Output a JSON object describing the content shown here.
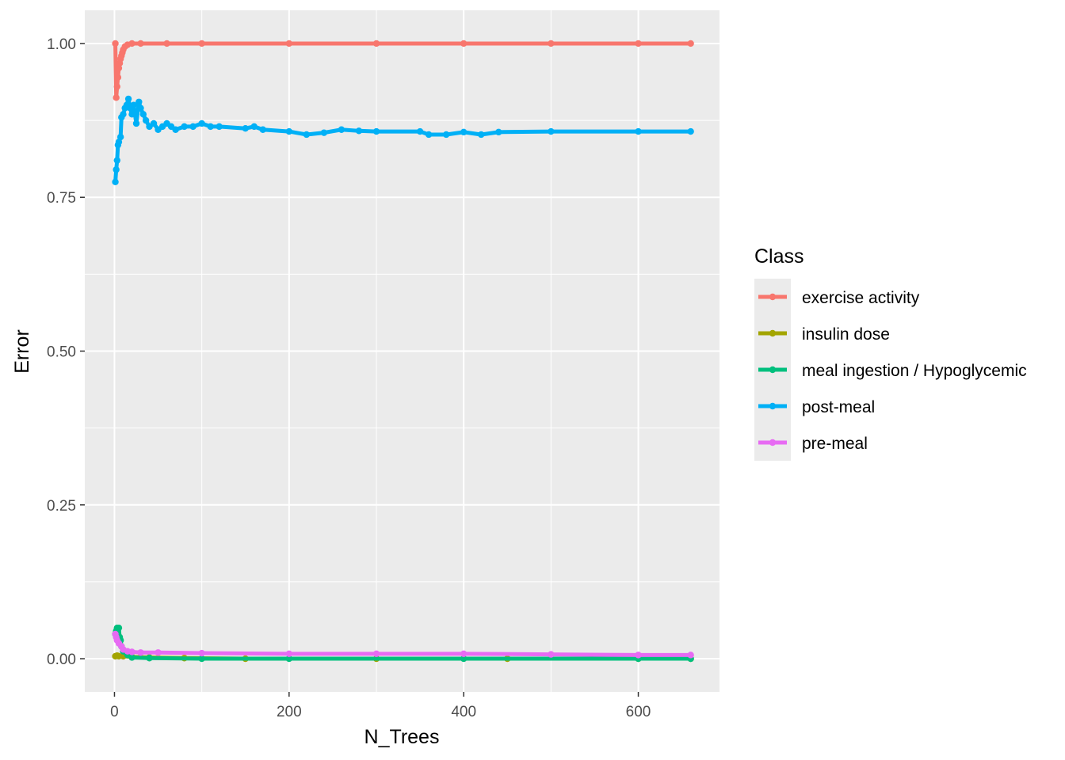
{
  "chart_data": {
    "type": "line",
    "xlabel": "N_Trees",
    "ylabel": "Error",
    "xlim": [
      -34,
      693
    ],
    "ylim": [
      -0.054,
      1.054
    ],
    "x_ticks": [
      0,
      200,
      400,
      600
    ],
    "x_tick_labels": [
      "0",
      "200",
      "400",
      "600"
    ],
    "y_ticks": [
      0.0,
      0.25,
      0.5,
      0.75,
      1.0
    ],
    "y_tick_labels": [
      "0.00",
      "0.25",
      "0.50",
      "0.75",
      "1.00"
    ],
    "panel_background": "#ebebeb",
    "grid": true,
    "legend_title": "Class",
    "legend_position": "right",
    "series": [
      {
        "name": "exercise activity",
        "color": "#F8766D",
        "points": [
          [
            1,
            1.0
          ],
          [
            2,
            0.912
          ],
          [
            3,
            0.93
          ],
          [
            4,
            0.945
          ],
          [
            5,
            0.96
          ],
          [
            6,
            0.968
          ],
          [
            7,
            0.975
          ],
          [
            8,
            0.98
          ],
          [
            9,
            0.985
          ],
          [
            10,
            0.99
          ],
          [
            12,
            0.995
          ],
          [
            15,
            0.998
          ],
          [
            20,
            1.0
          ],
          [
            30,
            1.0
          ],
          [
            60,
            1.0
          ],
          [
            100,
            1.0
          ],
          [
            200,
            1.0
          ],
          [
            300,
            1.0
          ],
          [
            400,
            1.0
          ],
          [
            500,
            1.0
          ],
          [
            600,
            1.0
          ],
          [
            660,
            1.0
          ]
        ]
      },
      {
        "name": "insulin dose",
        "color": "#A3A500",
        "points": [
          [
            1,
            0.004
          ],
          [
            3,
            0.005
          ],
          [
            5,
            0.004
          ],
          [
            10,
            0.004
          ],
          [
            20,
            0.003
          ],
          [
            40,
            0.002
          ],
          [
            80,
            0.001
          ],
          [
            150,
            0.0
          ],
          [
            300,
            0.0
          ],
          [
            450,
            0.0
          ],
          [
            600,
            0.0
          ],
          [
            660,
            0.0
          ]
        ]
      },
      {
        "name": "meal ingestion / Hypoglycemic",
        "color": "#00BF7D",
        "points": [
          [
            1,
            0.04
          ],
          [
            2,
            0.045
          ],
          [
            3,
            0.05
          ],
          [
            4,
            0.048
          ],
          [
            5,
            0.05
          ],
          [
            6,
            0.035
          ],
          [
            7,
            0.03
          ],
          [
            8,
            0.02
          ],
          [
            10,
            0.012
          ],
          [
            15,
            0.006
          ],
          [
            20,
            0.002
          ],
          [
            40,
            0.001
          ],
          [
            100,
            0.0
          ],
          [
            200,
            0.0
          ],
          [
            400,
            0.0
          ],
          [
            600,
            0.0
          ],
          [
            660,
            0.0
          ]
        ]
      },
      {
        "name": "post-meal",
        "color": "#00B0F6",
        "points": [
          [
            1,
            0.775
          ],
          [
            2,
            0.795
          ],
          [
            3,
            0.81
          ],
          [
            4,
            0.835
          ],
          [
            5,
            0.84
          ],
          [
            7,
            0.848
          ],
          [
            8,
            0.88
          ],
          [
            10,
            0.885
          ],
          [
            12,
            0.895
          ],
          [
            14,
            0.9
          ],
          [
            16,
            0.91
          ],
          [
            18,
            0.895
          ],
          [
            20,
            0.885
          ],
          [
            22,
            0.9
          ],
          [
            25,
            0.87
          ],
          [
            28,
            0.905
          ],
          [
            30,
            0.895
          ],
          [
            33,
            0.885
          ],
          [
            36,
            0.875
          ],
          [
            40,
            0.865
          ],
          [
            45,
            0.87
          ],
          [
            50,
            0.86
          ],
          [
            55,
            0.865
          ],
          [
            60,
            0.87
          ],
          [
            65,
            0.865
          ],
          [
            70,
            0.86
          ],
          [
            80,
            0.865
          ],
          [
            90,
            0.865
          ],
          [
            100,
            0.87
          ],
          [
            110,
            0.865
          ],
          [
            120,
            0.865
          ],
          [
            150,
            0.862
          ],
          [
            160,
            0.865
          ],
          [
            170,
            0.86
          ],
          [
            200,
            0.857
          ],
          [
            220,
            0.852
          ],
          [
            240,
            0.855
          ],
          [
            260,
            0.86
          ],
          [
            280,
            0.858
          ],
          [
            300,
            0.857
          ],
          [
            350,
            0.857
          ],
          [
            360,
            0.852
          ],
          [
            380,
            0.852
          ],
          [
            400,
            0.856
          ],
          [
            420,
            0.852
          ],
          [
            440,
            0.856
          ],
          [
            500,
            0.857
          ],
          [
            600,
            0.857
          ],
          [
            660,
            0.857
          ]
        ]
      },
      {
        "name": "pre-meal",
        "color": "#E76BF3",
        "points": [
          [
            1,
            0.04
          ],
          [
            2,
            0.035
          ],
          [
            3,
            0.03
          ],
          [
            5,
            0.025
          ],
          [
            8,
            0.02
          ],
          [
            10,
            0.015
          ],
          [
            15,
            0.012
          ],
          [
            20,
            0.011
          ],
          [
            30,
            0.01
          ],
          [
            50,
            0.01
          ],
          [
            100,
            0.009
          ],
          [
            200,
            0.008
          ],
          [
            300,
            0.008
          ],
          [
            400,
            0.008
          ],
          [
            500,
            0.007
          ],
          [
            600,
            0.006
          ],
          [
            660,
            0.006
          ]
        ]
      }
    ]
  }
}
